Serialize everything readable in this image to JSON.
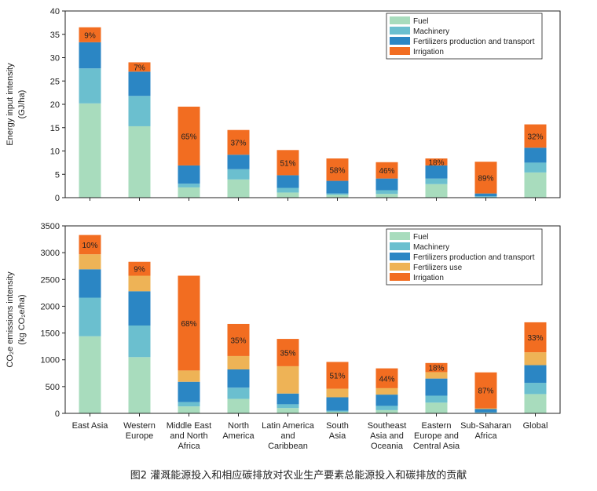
{
  "colors": {
    "Fuel": "#a8dcbd",
    "Machinery": "#6bbfcf",
    "Fertilizers production and transport": "#2b86c4",
    "Fertilizers use": "#eeb356",
    "Irrigation": "#f26d21"
  },
  "caption": "图2 灌溉能源投入和相应碳排放对农业生产要素总能源投入和碳排放的贡献",
  "chart_data": [
    {
      "type": "bar",
      "stacked": true,
      "ylabel_lines": [
        "Energy input intensity",
        "(GJ/ha)"
      ],
      "ylim": [
        0,
        40
      ],
      "yticks": [
        0,
        5,
        10,
        15,
        20,
        25,
        30,
        35,
        40
      ],
      "categories": [
        "East Asia",
        "Western Europe",
        "Middle East and North Africa",
        "North America",
        "Latin America and Caribbean",
        "South Asia",
        "Southeast Asia and Oceania",
        "Eastern Europe and Central Asia",
        "Sub-Saharan Africa",
        "Global"
      ],
      "legend": [
        "Fuel",
        "Machinery",
        "Fertilizers production and transport",
        "Irrigation"
      ],
      "legend_position": "top-right",
      "series": [
        {
          "name": "Fuel",
          "values": [
            20.2,
            15.3,
            2.2,
            3.9,
            1.1,
            0.6,
            0.8,
            2.9,
            0.1,
            5.4
          ]
        },
        {
          "name": "Machinery",
          "values": [
            7.5,
            6.5,
            0.8,
            2.2,
            1.0,
            0.3,
            0.8,
            1.2,
            0.2,
            2.1
          ]
        },
        {
          "name": "Fertilizers production and transport",
          "values": [
            5.6,
            5.2,
            3.9,
            3.1,
            2.7,
            2.7,
            2.5,
            2.8,
            0.6,
            3.2
          ]
        },
        {
          "name": "Irrigation",
          "values": [
            3.2,
            2.0,
            12.6,
            5.3,
            5.4,
            4.8,
            3.5,
            1.5,
            6.8,
            5.0
          ]
        }
      ],
      "annotations": [
        "9%",
        "7%",
        "65%",
        "37%",
        "51%",
        "58%",
        "46%",
        "18%",
        "89%",
        "32%"
      ]
    },
    {
      "type": "bar",
      "stacked": true,
      "ylabel_lines": [
        "CO₂e emissions intensity",
        "(kg CO₂e/ha)"
      ],
      "ylim": [
        0,
        3500
      ],
      "yticks": [
        0,
        500,
        1000,
        1500,
        2000,
        2500,
        3000,
        3500
      ],
      "categories": [
        "East Asia",
        "Western Europe",
        "Middle East and North Africa",
        "North America",
        "Latin America and Caribbean",
        "South Asia",
        "Southeast Asia and Oceania",
        "Eastern Europe and Central Asia",
        "Sub-Saharan Africa",
        "Global"
      ],
      "category_labels": [
        [
          "East Asia"
        ],
        [
          "Western",
          "Europe"
        ],
        [
          "Middle East",
          "and North",
          "Africa"
        ],
        [
          "North",
          "America"
        ],
        [
          "Latin America",
          "and",
          "Caribbean"
        ],
        [
          "South",
          "Asia"
        ],
        [
          "Southeast",
          "Asia and",
          "Oceania"
        ],
        [
          "Eastern",
          "Europe and",
          "Central Asia"
        ],
        [
          "Sub-Saharan",
          "Africa"
        ],
        [
          "Global"
        ]
      ],
      "legend": [
        "Fuel",
        "Machinery",
        "Fertilizers production and transport",
        "Fertilizers use",
        "Irrigation"
      ],
      "legend_position": "top-right",
      "series": [
        {
          "name": "Fuel",
          "values": [
            1440,
            1050,
            130,
            270,
            100,
            30,
            60,
            200,
            10,
            360
          ]
        },
        {
          "name": "Machinery",
          "values": [
            720,
            590,
            80,
            210,
            70,
            20,
            80,
            130,
            10,
            210
          ]
        },
        {
          "name": "Fertilizers production and transport",
          "values": [
            530,
            640,
            380,
            340,
            200,
            250,
            210,
            320,
            60,
            330
          ]
        },
        {
          "name": "Fertilizers use",
          "values": [
            280,
            290,
            210,
            250,
            510,
            160,
            120,
            120,
            15,
            240
          ]
        },
        {
          "name": "Irrigation",
          "values": [
            360,
            260,
            1770,
            600,
            510,
            500,
            370,
            170,
            670,
            560
          ]
        }
      ],
      "annotations": [
        "10%",
        "9%",
        "68%",
        "35%",
        "35%",
        "51%",
        "44%",
        "18%",
        "87%",
        "33%"
      ]
    }
  ]
}
